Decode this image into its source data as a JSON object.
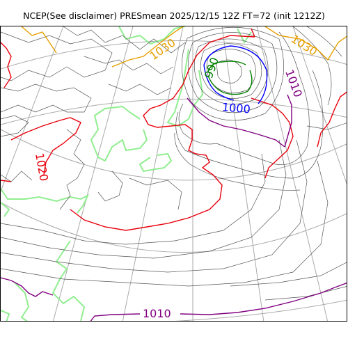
{
  "title": "NCEP(See disclaimer) PRESmean 2025/12/15 12Z FT=72 (init 1212Z)",
  "colors": {
    "isobar": "#555555",
    "c1020": "#e8000b",
    "c1010": "#800080",
    "c1000": "#0000ff",
    "c990": "#008000",
    "c1030": "#e69f00",
    "coast": "#90ee90",
    "grid": "#aaaaaa"
  },
  "labels": {
    "l1030a": "1030",
    "l1030b": "1030",
    "l990": "990",
    "l1010a": "1010",
    "l1000": "1000",
    "l1020": "1020",
    "l1010b": "1010"
  }
}
